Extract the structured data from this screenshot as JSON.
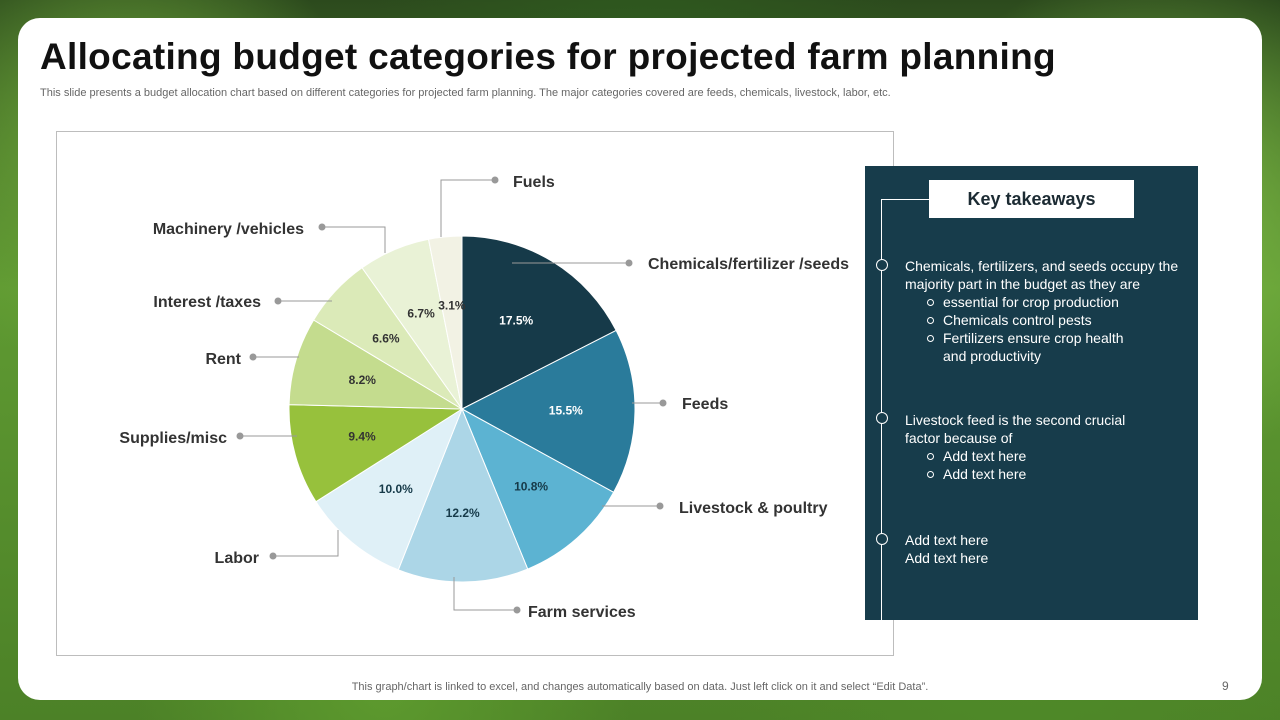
{
  "slide": {
    "title": "Allocating budget categories for projected farm planning",
    "subtitle": "This slide presents a budget allocation chart based on different categories for projected farm planning. The major categories covered are feeds, chemicals, livestock, labor, etc.",
    "footer": "This graph/chart is linked to excel,  and changes automatically based on data. Just left click on it and select “Edit Data”.",
    "page_number": "9"
  },
  "chart_data": {
    "type": "pie",
    "title": "",
    "slices": [
      {
        "label": "Chemicals/fertilizer /seeds",
        "value": 17.5,
        "display": "17.5%",
        "color": "#163a49",
        "text_color": "#ffffff"
      },
      {
        "label": "Feeds",
        "value": 15.5,
        "display": "15.5%",
        "color": "#2a7b9b",
        "text_color": "#ffffff"
      },
      {
        "label": "Livestock & poultry",
        "value": 10.8,
        "display": "10.8%",
        "color": "#5cb3d2",
        "text_color": "#163a49"
      },
      {
        "label": "Farm services",
        "value": 12.2,
        "display": "12.2%",
        "color": "#acd6e7",
        "text_color": "#163a49"
      },
      {
        "label": "Labor",
        "value": 10.0,
        "display": "10.0%",
        "color": "#dff0f7",
        "text_color": "#163a49"
      },
      {
        "label": "Supplies/misc",
        "value": 9.4,
        "display": "9.4%",
        "color": "#97c13c",
        "text_color": "#333333"
      },
      {
        "label": "Rent",
        "value": 8.2,
        "display": "8.2%",
        "color": "#c4dc8e",
        "text_color": "#333333"
      },
      {
        "label": "Interest /taxes",
        "value": 6.6,
        "display": "6.6%",
        "color": "#dbeab8",
        "text_color": "#333333"
      },
      {
        "label": "Machinery /vehicles",
        "value": 6.7,
        "display": "6.7%",
        "color": "#e9f2d6",
        "text_color": "#333333"
      },
      {
        "label": "Fuels",
        "value": 3.1,
        "display": "3.1%",
        "color": "#f2f2e4",
        "text_color": "#333333"
      }
    ]
  },
  "takeaways": {
    "title": "Key takeaways",
    "items": [
      {
        "text": "Chemicals, fertilizers, and seeds occupy the majority part in the budget as they are",
        "sub": [
          "essential for crop production",
          "Chemicals control pests",
          "Fertilizers ensure crop health and productivity"
        ]
      },
      {
        "text": "Livestock feed is the second crucial factor because of",
        "sub": [
          "Add text here",
          "Add text here"
        ]
      },
      {
        "lines": [
          "Add text here",
          "Add text here"
        ]
      }
    ]
  }
}
